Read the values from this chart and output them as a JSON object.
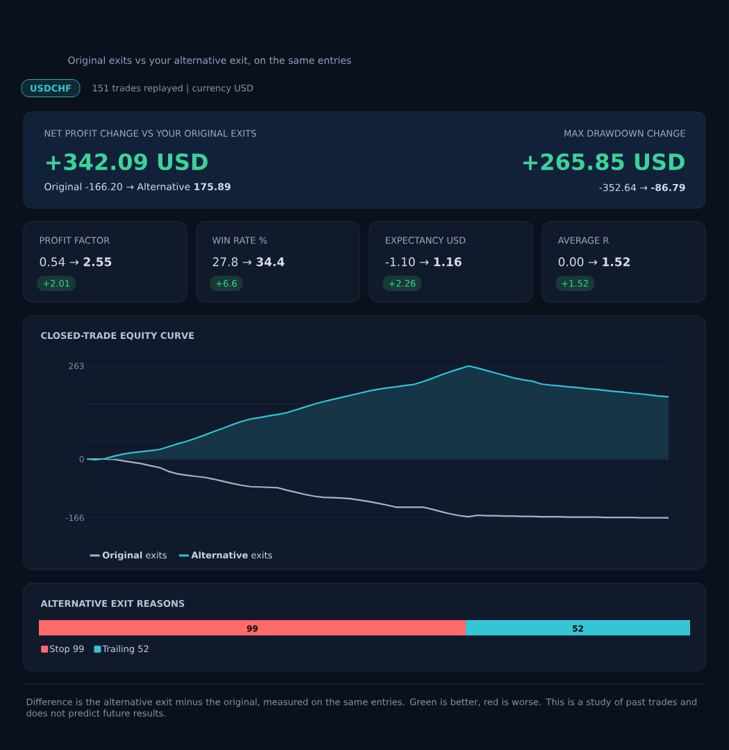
{
  "chart_data": [
    {
      "type": "other",
      "subtitle": "Original exits vs your alternative exit, on the same entries",
      "annotations": [
        "USDCHF",
        "151 trades replayed  |  currency USD",
        "NET PROFIT CHANGE VS YOUR ORIGINAL EXITS",
        "+342.09 USD",
        "Original -166.20 → Alternative **175.89**",
        "MAX DRAWDOWN CHANGE",
        "+265.85 USD",
        "-352.64 → **-86.79**",
        "PROFIT FACTOR",
        "0.54 → **2.55**",
        "+2.01",
        "WIN RATE %",
        "27.8 → **34.4**",
        "+6.6",
        "EXPECTANCY USD",
        "-1.10 → **1.16**",
        "+2.26",
        "AVERAGE R",
        "0.00 → **1.52**",
        "+1.52"
      ]
    },
    {
      "type": "line",
      "title": "CLOSED-TRADE EQUITY CURVE",
      "categories": [
        null,
        null,
        null,
        null,
        null,
        null,
        null,
        null,
        null,
        null,
        null,
        null,
        null,
        null,
        null,
        null,
        null,
        null,
        null,
        null,
        null,
        null,
        null,
        null,
        null,
        null,
        null,
        null,
        null,
        null,
        null,
        null,
        null,
        null,
        null,
        null,
        null,
        null,
        null,
        null,
        null,
        null,
        null,
        null,
        null,
        null,
        null,
        null,
        null,
        null,
        null,
        null,
        null,
        null,
        null,
        null,
        null,
        null,
        null,
        null,
        null,
        null,
        null,
        null,
        null
      ],
      "series": [
        {
          "name": "**Original** exits",
          "type": "line",
          "color": "#a9b1c9",
          "values": [
            0,
            0,
            0,
            -1,
            -5,
            -9,
            -13,
            -19,
            -24,
            -35,
            -42,
            -46,
            -49,
            -52,
            -57,
            -63,
            -69,
            -74,
            -78,
            -79,
            -80,
            -81,
            -88,
            -94,
            -100,
            -105,
            -108,
            -109,
            -110,
            -112,
            -116,
            -120,
            -125,
            -130,
            -136,
            -136,
            -136,
            -136,
            -142,
            -149,
            -155,
            -160,
            -163,
            -159,
            -160,
            -160,
            -161,
            -161,
            -162,
            -162,
            -163,
            -163,
            -163,
            -164,
            -164,
            -164,
            -164,
            -165,
            -165,
            -165,
            -165,
            -166,
            -166,
            -166,
            -166
          ]
        },
        {
          "name": "**Alternative** exits",
          "type": "area",
          "color": "#2ec4d6",
          "values": [
            0,
            -2,
            1,
            8,
            14,
            18,
            21,
            24,
            27,
            35,
            43,
            50,
            59,
            68,
            78,
            87,
            97,
            106,
            113,
            117,
            122,
            126,
            131,
            139,
            147,
            155,
            162,
            168,
            174,
            180,
            186,
            192,
            197,
            201,
            204,
            208,
            211,
            219,
            228,
            238,
            247,
            255,
            263,
            257,
            250,
            243,
            236,
            229,
            224,
            220,
            212,
            209,
            207,
            204,
            202,
            199,
            197,
            194,
            191,
            189,
            186,
            184,
            181,
            178,
            176
          ]
        }
      ],
      "ylim": [
        -167,
        264
      ],
      "yticks": [
        263,
        {
          "value": 155.75,
          "label": null
        },
        {
          "value": 48.5,
          "label": null
        },
        0,
        {
          "value": -58.75,
          "label": null
        },
        -166
      ],
      "ref_lines": [
        {
          "axis": "y",
          "value": 0,
          "line_style": "dashed",
          "color": "#3b4a63"
        }
      ],
      "grid": "y",
      "tick_labels": "y",
      "legend": "bottom left",
      "marker": "none",
      "line_style": "solid"
    },
    {
      "type": "bar",
      "title": "ALTERNATIVE EXIT REASONS",
      "orientation": "horizontal",
      "stacked": true,
      "categories": [
        null
      ],
      "series": [
        {
          "name": "Stop 99",
          "color": "#ff6b6b",
          "values": [
            99
          ]
        },
        {
          "name": "Trailing 52",
          "color": "#36c5d5",
          "values": [
            52
          ]
        }
      ],
      "data_labels": true,
      "legend": "bottom left",
      "annotations": [
        "Difference is the alternative exit minus the original, measured on the same entries. Green is better, red is worse. This is a study of past trades and does not predict future results."
      ]
    }
  ]
}
